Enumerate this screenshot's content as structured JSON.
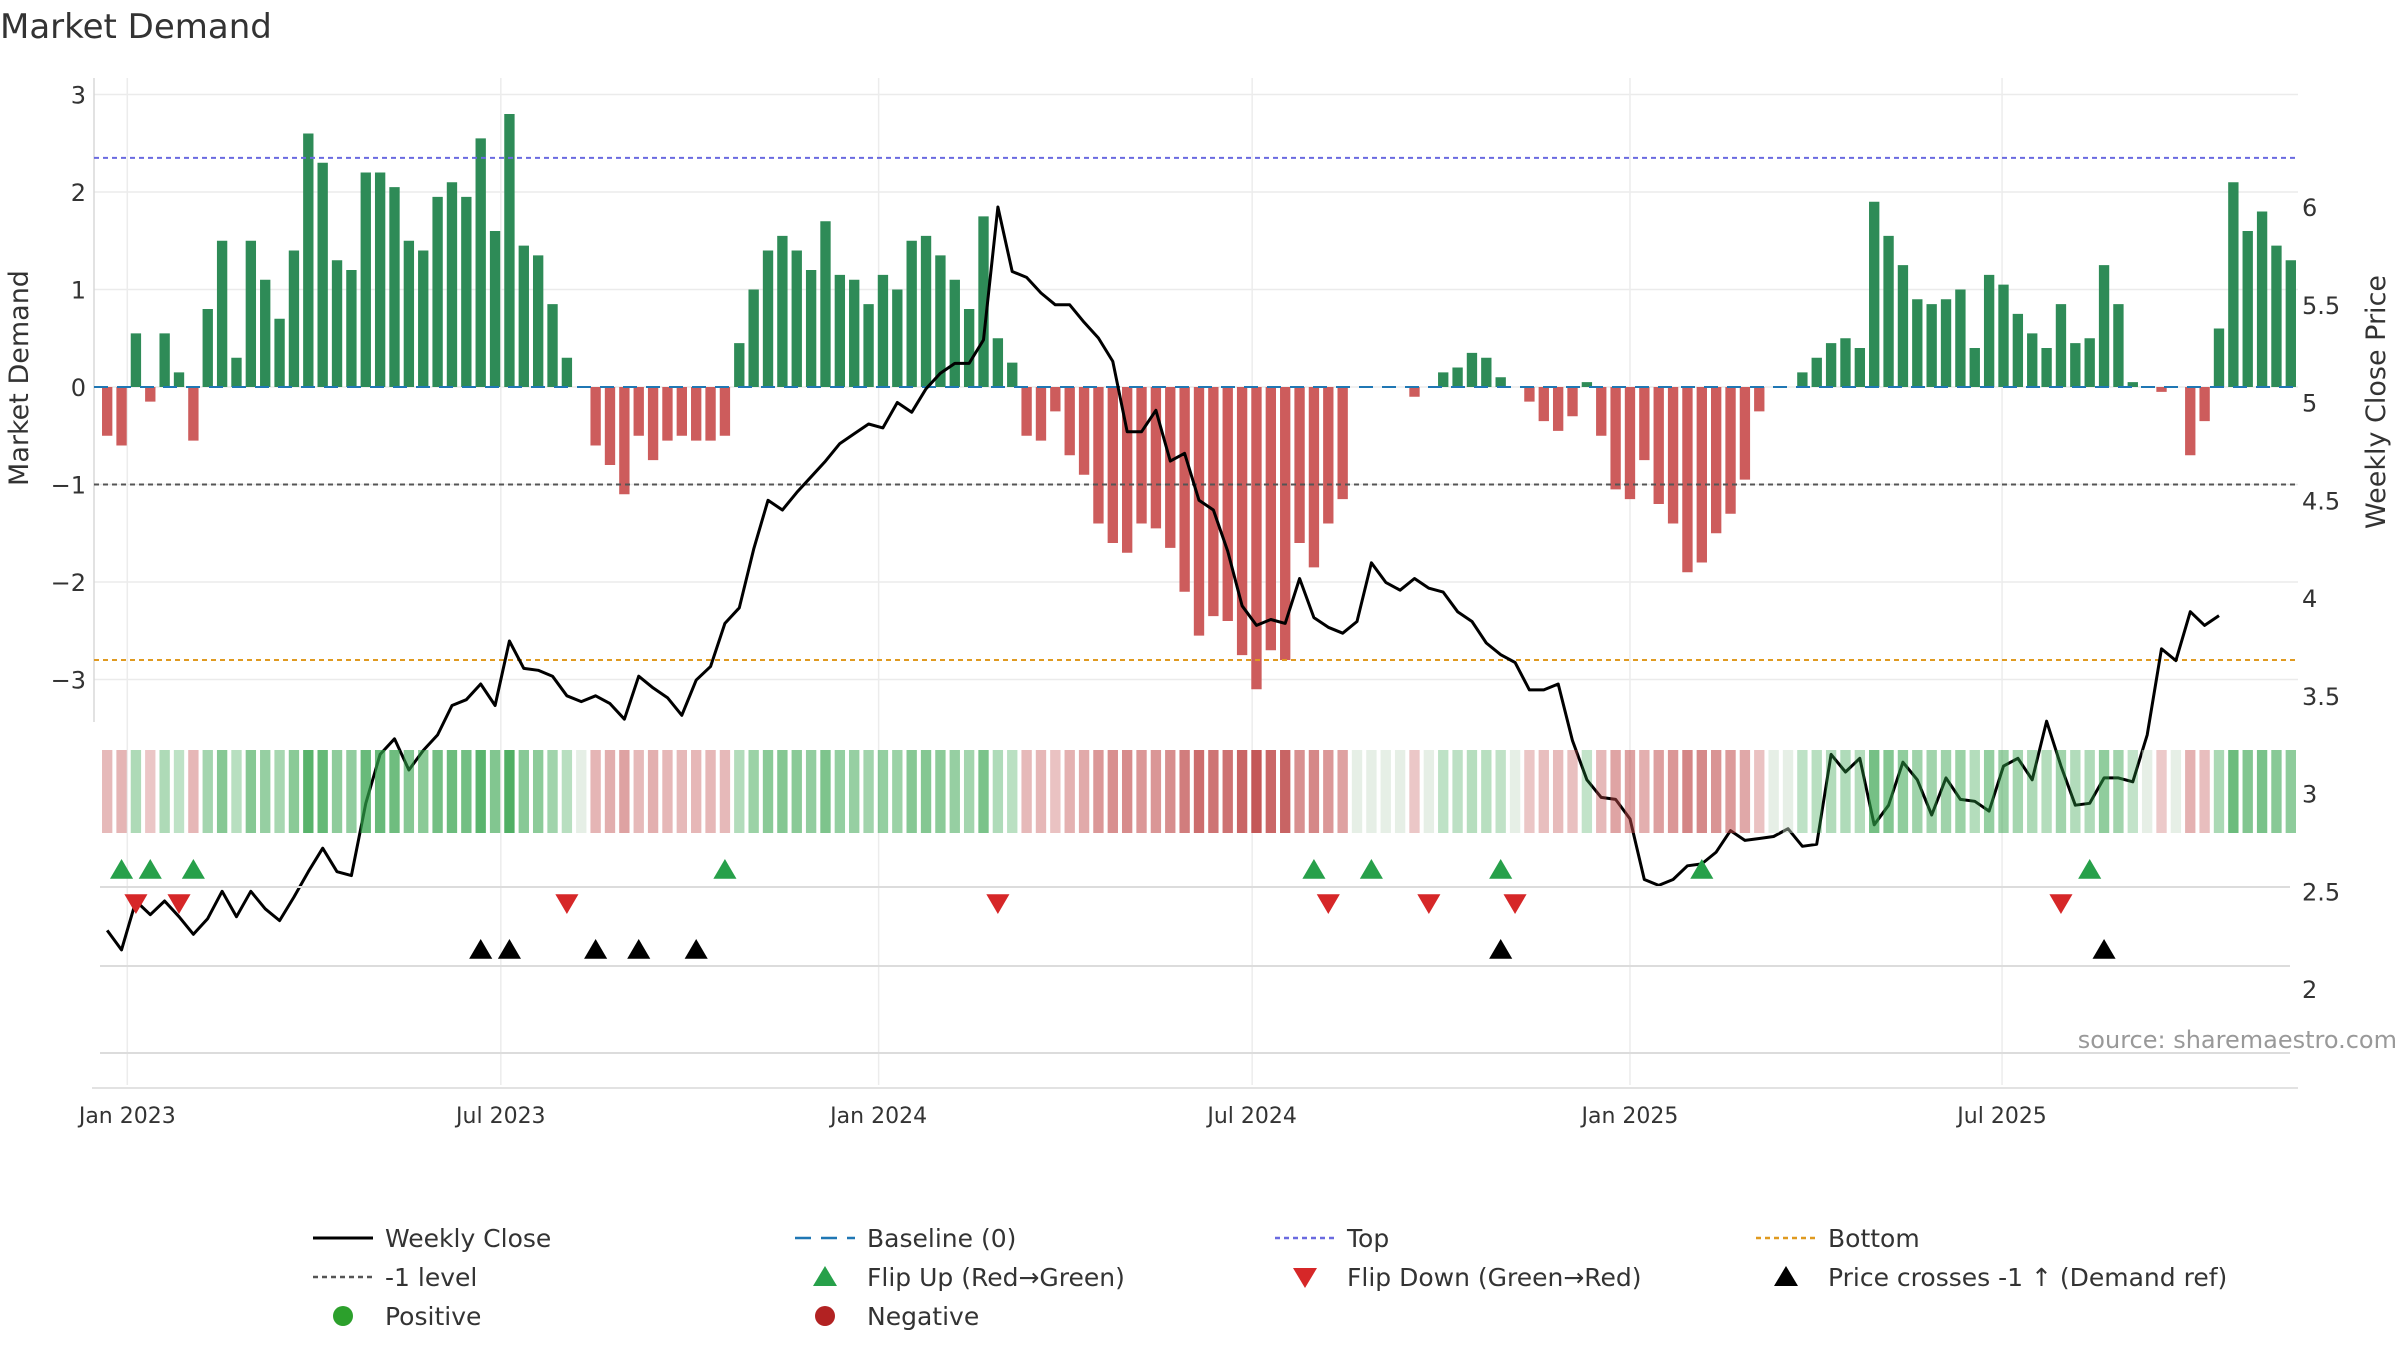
{
  "chart_data": {
    "type": "bar",
    "title": "Market Demand",
    "ylabel": "Market Demand",
    "y2label": "Weekly Close Price",
    "source": "source: sharemaestro.com",
    "ylim": [
      -3.4,
      3.1
    ],
    "y2lim": [
      1.95,
      6.2
    ],
    "yticks": [
      -3,
      -2,
      -1,
      0,
      1,
      2,
      3
    ],
    "yticklabels": [
      "−3",
      "−2",
      "−1",
      "0",
      "1",
      "2",
      "3"
    ],
    "y2ticks": [
      2,
      2.5,
      3,
      3.5,
      4,
      4.5,
      5,
      5.5,
      6
    ],
    "y2ticklabels": [
      "2",
      "2.5",
      "3",
      "3.5",
      "4",
      "4.5",
      "5",
      "5.5",
      "6"
    ],
    "xticks": [
      {
        "week": 1.4,
        "label": "Jan 2023"
      },
      {
        "week": 27.4,
        "label": "Jul 2023"
      },
      {
        "week": 53.7,
        "label": "Jan 2024"
      },
      {
        "week": 79.7,
        "label": "Jul 2024"
      },
      {
        "week": 106.0,
        "label": "Jan 2025"
      },
      {
        "week": 131.9,
        "label": "Jul 2025"
      }
    ],
    "reference_lines": {
      "top": 2.35,
      "minus_one": -1,
      "bottom": -2.8
    },
    "demand": [
      -0.5,
      -0.6,
      0.55,
      -0.15,
      0.55,
      0.15,
      -0.55,
      0.8,
      1.5,
      0.3,
      1.5,
      1.1,
      0.7,
      1.4,
      2.6,
      2.3,
      1.3,
      1.2,
      2.2,
      2.2,
      2.05,
      1.5,
      1.4,
      1.95,
      2.1,
      1.95,
      2.55,
      1.6,
      2.8,
      1.45,
      1.35,
      0.85,
      0.3,
      0,
      -0.6,
      -0.8,
      -1.1,
      -0.5,
      -0.75,
      -0.55,
      -0.5,
      -0.55,
      -0.55,
      -0.5,
      0.45,
      1.0,
      1.4,
      1.55,
      1.4,
      1.2,
      1.7,
      1.15,
      1.1,
      0.85,
      1.15,
      1.0,
      1.5,
      1.55,
      1.35,
      1.1,
      0.8,
      1.75,
      0.5,
      0.25,
      -0.5,
      -0.55,
      -0.25,
      -0.7,
      -0.9,
      -1.4,
      -1.6,
      -1.7,
      -1.4,
      -1.45,
      -1.65,
      -2.1,
      -2.55,
      -2.35,
      -2.4,
      -2.75,
      -3.1,
      -2.7,
      -2.8,
      -1.6,
      -1.85,
      -1.4,
      -1.15,
      0,
      0,
      0,
      0,
      -0.1,
      0,
      0.15,
      0.2,
      0.35,
      0.3,
      0.1,
      0,
      -0.15,
      -0.35,
      -0.45,
      -0.3,
      0.05,
      -0.5,
      -1.05,
      -1.15,
      -0.75,
      -1.2,
      -1.4,
      -1.9,
      -1.8,
      -1.5,
      -1.3,
      -0.95,
      -0.25,
      0,
      0,
      0.15,
      0.3,
      0.45,
      0.5,
      0.4,
      1.9,
      1.55,
      1.25,
      0.9,
      0.85,
      0.9,
      1.0,
      0.4,
      1.15,
      1.05,
      0.75,
      0.55,
      0.4,
      0.85,
      0.45,
      0.5,
      1.25,
      0.85,
      0.05,
      0,
      -0.05,
      0,
      -0.7,
      -0.35,
      0.6,
      2.1,
      1.6,
      1.8,
      1.45,
      1.3
    ],
    "weekly_close": [
      2.3,
      2.2,
      2.45,
      2.38,
      2.45,
      2.37,
      2.28,
      2.36,
      2.5,
      2.37,
      2.5,
      2.41,
      2.35,
      2.47,
      2.6,
      2.72,
      2.6,
      2.58,
      2.95,
      3.2,
      3.28,
      3.12,
      3.22,
      3.3,
      3.45,
      3.48,
      3.56,
      3.45,
      3.78,
      3.64,
      3.63,
      3.6,
      3.5,
      3.47,
      3.5,
      3.46,
      3.38,
      3.6,
      3.54,
      3.49,
      3.4,
      3.58,
      3.65,
      3.87,
      3.95,
      4.25,
      4.5,
      4.45,
      4.54,
      4.62,
      4.7,
      4.79,
      4.84,
      4.89,
      4.87,
      5.0,
      4.95,
      5.07,
      5.15,
      5.2,
      5.2,
      5.32,
      6.0,
      5.67,
      5.64,
      5.56,
      5.5,
      5.5,
      5.41,
      5.33,
      5.21,
      4.85,
      4.85,
      4.96,
      4.7,
      4.74,
      4.5,
      4.45,
      4.24,
      3.96,
      3.86,
      3.89,
      3.87,
      4.1,
      3.9,
      3.85,
      3.82,
      3.88,
      4.18,
      4.08,
      4.04,
      4.1,
      4.05,
      4.03,
      3.93,
      3.88,
      3.77,
      3.71,
      3.67,
      3.53,
      3.53,
      3.56,
      3.27,
      3.07,
      2.98,
      2.97,
      2.87,
      2.56,
      2.53,
      2.56,
      2.63,
      2.64,
      2.7,
      2.81,
      2.76,
      2.77,
      2.78,
      2.82,
      2.73,
      2.74,
      3.2,
      3.11,
      3.18,
      2.84,
      2.94,
      3.16,
      3.07,
      2.89,
      3.08,
      2.97,
      2.96,
      2.91,
      3.14,
      3.18,
      3.07,
      3.37,
      3.14,
      2.94,
      2.95,
      3.08,
      3.08,
      3.06,
      3.3,
      3.74,
      3.68,
      3.93,
      3.86,
      3.91
    ],
    "flip_up_weeks": [
      1,
      3,
      6,
      43,
      84,
      88,
      97,
      111,
      138
    ],
    "flip_down_weeks": [
      2,
      5,
      32,
      62,
      85,
      92,
      98,
      136
    ],
    "price_cross_weeks": [
      26,
      28,
      34,
      37,
      41,
      97,
      139
    ],
    "series": [
      {
        "name": "Weekly Close",
        "color": "#000000"
      },
      {
        "name": "Baseline (0)",
        "color": "#1f77b4"
      },
      {
        "name": "Top",
        "color": "#6a6ae0"
      },
      {
        "name": "Bottom",
        "color": "#e09a20"
      },
      {
        "name": "-1 level",
        "color": "#555555"
      },
      {
        "name": "Flip Up (Red→Green)",
        "color": "#27a04a"
      },
      {
        "name": "Flip Down (Green→Red)",
        "color": "#d62728"
      },
      {
        "name": "Price crosses -1 ↑ (Demand ref)",
        "color": "#000000"
      },
      {
        "name": "Positive",
        "color": "#2ca02c"
      },
      {
        "name": "Negative",
        "color": "#b22222"
      }
    ],
    "colors": {
      "positive_bar": "#2e8b57",
      "negative_bar": "#cd5c5c",
      "grid": "#ebebeb"
    },
    "grid": true,
    "legend_placement": "bottom"
  }
}
